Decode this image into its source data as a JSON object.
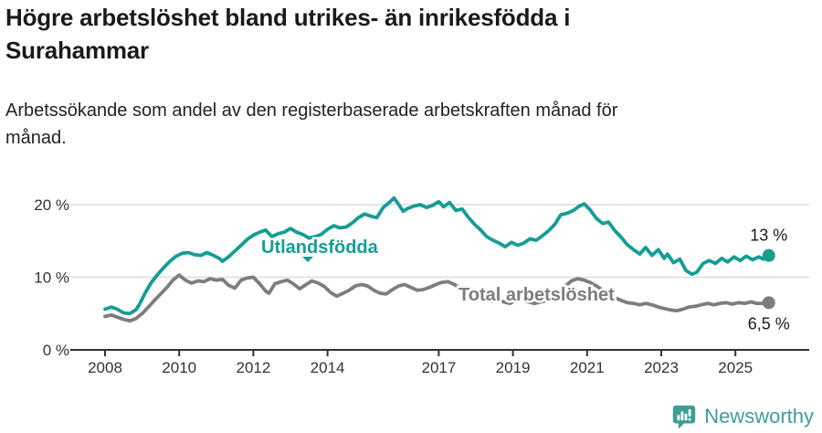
{
  "header": {
    "title_lines": [
      "Högre arbetslöshet bland utrikes- än inrikesfödda i",
      "Surahammar"
    ],
    "subtitle_lines": [
      "Arbetssökande som andel av den registerbaserade arbetskraften månad för",
      "månad."
    ]
  },
  "footer": {
    "brand": "Newsworthy",
    "logo_icon": "speech-bubble-with-bar-chart-and-exclamation",
    "brand_color": "#3f9e94"
  },
  "colors": {
    "foreign_born_line": "#149d94",
    "total_line": "#7d7d7d",
    "gridline": "#dcdcdc",
    "axis": "#333333",
    "tick_text": "#333333",
    "end_label_text": "#1a1a1a",
    "background": "#ffffff"
  },
  "chart_data": {
    "type": "line",
    "title": "Högre arbetslöshet bland utrikes- än inrikesfödda i Surahammar",
    "subtitle": "Arbetssökande som andel av den registerbaserade arbetskraften månad för månad.",
    "xlabel": "",
    "ylabel": "",
    "grid": "horizontal",
    "legend_position": "inline-labels",
    "x_axis": {
      "ticks": [
        2008,
        2010,
        2012,
        2014,
        2017,
        2019,
        2021,
        2023,
        2025
      ],
      "range": [
        2007.9,
        2026.3
      ]
    },
    "y_axis": {
      "ticks": [
        {
          "value": 0,
          "label": "0 %"
        },
        {
          "value": 10,
          "label": "10 %"
        },
        {
          "value": 20,
          "label": "20 %"
        }
      ],
      "range": [
        0,
        22
      ]
    },
    "series": [
      {
        "name": "Total arbetslöshet",
        "color": "#7d7d7d",
        "end_label": "6,5 %",
        "end_value": 6.5,
        "points": [
          [
            2008.0,
            4.6
          ],
          [
            2008.17,
            4.8
          ],
          [
            2008.33,
            4.5
          ],
          [
            2008.5,
            4.2
          ],
          [
            2008.67,
            4.0
          ],
          [
            2008.83,
            4.3
          ],
          [
            2009.0,
            5.0
          ],
          [
            2009.17,
            5.9
          ],
          [
            2009.33,
            6.8
          ],
          [
            2009.5,
            7.7
          ],
          [
            2009.67,
            8.6
          ],
          [
            2009.83,
            9.6
          ],
          [
            2010.0,
            10.3
          ],
          [
            2010.17,
            9.6
          ],
          [
            2010.33,
            9.2
          ],
          [
            2010.5,
            9.5
          ],
          [
            2010.67,
            9.4
          ],
          [
            2010.83,
            9.8
          ],
          [
            2011.0,
            9.6
          ],
          [
            2011.17,
            9.7
          ],
          [
            2011.33,
            8.9
          ],
          [
            2011.5,
            8.5
          ],
          [
            2011.67,
            9.6
          ],
          [
            2011.83,
            9.9
          ],
          [
            2012.0,
            10.0
          ],
          [
            2012.17,
            9.1
          ],
          [
            2012.33,
            8.1
          ],
          [
            2012.42,
            7.8
          ],
          [
            2012.58,
            9.1
          ],
          [
            2012.75,
            9.4
          ],
          [
            2012.92,
            9.6
          ],
          [
            2013.08,
            9.1
          ],
          [
            2013.25,
            8.4
          ],
          [
            2013.42,
            9.0
          ],
          [
            2013.58,
            9.5
          ],
          [
            2013.75,
            9.2
          ],
          [
            2013.92,
            8.7
          ],
          [
            2014.08,
            7.9
          ],
          [
            2014.25,
            7.4
          ],
          [
            2014.42,
            7.8
          ],
          [
            2014.58,
            8.2
          ],
          [
            2014.75,
            8.8
          ],
          [
            2014.92,
            9.0
          ],
          [
            2015.08,
            8.8
          ],
          [
            2015.25,
            8.2
          ],
          [
            2015.42,
            7.8
          ],
          [
            2015.58,
            7.7
          ],
          [
            2015.75,
            8.3
          ],
          [
            2015.92,
            8.8
          ],
          [
            2016.08,
            9.0
          ],
          [
            2016.25,
            8.6
          ],
          [
            2016.42,
            8.2
          ],
          [
            2016.58,
            8.3
          ],
          [
            2016.75,
            8.6
          ],
          [
            2016.92,
            9.0
          ],
          [
            2017.08,
            9.3
          ],
          [
            2017.25,
            9.4
          ],
          [
            2017.42,
            9.0
          ],
          [
            2017.58,
            8.5
          ],
          [
            2017.75,
            8.1
          ],
          [
            2017.92,
            7.6
          ],
          [
            2018.08,
            7.2
          ],
          [
            2018.25,
            6.9
          ],
          [
            2018.42,
            6.7
          ],
          [
            2018.58,
            6.9
          ],
          [
            2018.75,
            6.6
          ],
          [
            2018.92,
            6.4
          ],
          [
            2019.08,
            6.9
          ],
          [
            2019.25,
            6.8
          ],
          [
            2019.42,
            6.6
          ],
          [
            2019.58,
            6.4
          ],
          [
            2019.75,
            6.6
          ],
          [
            2019.92,
            6.8
          ],
          [
            2020.08,
            7.1
          ],
          [
            2020.25,
            7.9
          ],
          [
            2020.42,
            8.8
          ],
          [
            2020.58,
            9.5
          ],
          [
            2020.75,
            9.8
          ],
          [
            2020.92,
            9.6
          ],
          [
            2021.08,
            9.3
          ],
          [
            2021.25,
            8.8
          ],
          [
            2021.42,
            8.2
          ],
          [
            2021.58,
            7.7
          ],
          [
            2021.75,
            7.2
          ],
          [
            2021.92,
            6.8
          ],
          [
            2022.08,
            6.5
          ],
          [
            2022.25,
            6.4
          ],
          [
            2022.42,
            6.2
          ],
          [
            2022.58,
            6.4
          ],
          [
            2022.75,
            6.2
          ],
          [
            2022.92,
            5.9
          ],
          [
            2023.08,
            5.7
          ],
          [
            2023.25,
            5.5
          ],
          [
            2023.42,
            5.4
          ],
          [
            2023.58,
            5.6
          ],
          [
            2023.75,
            5.9
          ],
          [
            2023.92,
            6.0
          ],
          [
            2024.08,
            6.2
          ],
          [
            2024.25,
            6.4
          ],
          [
            2024.42,
            6.2
          ],
          [
            2024.58,
            6.4
          ],
          [
            2024.75,
            6.5
          ],
          [
            2024.92,
            6.3
          ],
          [
            2025.08,
            6.5
          ],
          [
            2025.25,
            6.4
          ],
          [
            2025.42,
            6.6
          ],
          [
            2025.58,
            6.4
          ],
          [
            2025.75,
            6.4
          ],
          [
            2025.9,
            6.5
          ]
        ]
      },
      {
        "name": "Utlandsfödda",
        "color": "#149d94",
        "end_label": "13 %",
        "end_value": 13,
        "points": [
          [
            2008.0,
            5.6
          ],
          [
            2008.17,
            5.9
          ],
          [
            2008.33,
            5.6
          ],
          [
            2008.5,
            5.1
          ],
          [
            2008.67,
            5.0
          ],
          [
            2008.83,
            5.5
          ],
          [
            2008.92,
            6.2
          ],
          [
            2009.08,
            7.8
          ],
          [
            2009.25,
            9.3
          ],
          [
            2009.42,
            10.4
          ],
          [
            2009.58,
            11.3
          ],
          [
            2009.75,
            12.2
          ],
          [
            2009.92,
            12.9
          ],
          [
            2010.08,
            13.3
          ],
          [
            2010.25,
            13.4
          ],
          [
            2010.42,
            13.1
          ],
          [
            2010.58,
            13.0
          ],
          [
            2010.75,
            13.4
          ],
          [
            2010.92,
            13.0
          ],
          [
            2011.08,
            12.6
          ],
          [
            2011.17,
            12.2
          ],
          [
            2011.33,
            12.8
          ],
          [
            2011.5,
            13.6
          ],
          [
            2011.67,
            14.4
          ],
          [
            2011.83,
            15.2
          ],
          [
            2012.0,
            15.8
          ],
          [
            2012.17,
            16.2
          ],
          [
            2012.33,
            16.5
          ],
          [
            2012.5,
            15.6
          ],
          [
            2012.67,
            16.0
          ],
          [
            2012.83,
            16.2
          ],
          [
            2013.0,
            16.7
          ],
          [
            2013.17,
            16.2
          ],
          [
            2013.33,
            15.9
          ],
          [
            2013.5,
            15.4
          ],
          [
            2013.67,
            15.6
          ],
          [
            2013.83,
            15.9
          ],
          [
            2014.0,
            16.6
          ],
          [
            2014.17,
            17.1
          ],
          [
            2014.33,
            16.8
          ],
          [
            2014.5,
            16.9
          ],
          [
            2014.67,
            17.5
          ],
          [
            2014.83,
            18.2
          ],
          [
            2015.0,
            18.7
          ],
          [
            2015.17,
            18.4
          ],
          [
            2015.33,
            18.2
          ],
          [
            2015.5,
            19.6
          ],
          [
            2015.67,
            20.3
          ],
          [
            2015.79,
            20.9
          ],
          [
            2015.92,
            20.0
          ],
          [
            2016.04,
            19.1
          ],
          [
            2016.17,
            19.5
          ],
          [
            2016.33,
            19.8
          ],
          [
            2016.5,
            20.0
          ],
          [
            2016.67,
            19.6
          ],
          [
            2016.83,
            19.9
          ],
          [
            2017.0,
            20.4
          ],
          [
            2017.13,
            19.7
          ],
          [
            2017.29,
            20.3
          ],
          [
            2017.46,
            19.2
          ],
          [
            2017.63,
            19.4
          ],
          [
            2017.79,
            18.3
          ],
          [
            2017.96,
            17.3
          ],
          [
            2018.13,
            16.5
          ],
          [
            2018.29,
            15.6
          ],
          [
            2018.46,
            15.1
          ],
          [
            2018.63,
            14.7
          ],
          [
            2018.79,
            14.2
          ],
          [
            2018.96,
            14.8
          ],
          [
            2019.13,
            14.4
          ],
          [
            2019.29,
            14.7
          ],
          [
            2019.46,
            15.3
          ],
          [
            2019.63,
            15.1
          ],
          [
            2019.79,
            15.7
          ],
          [
            2019.96,
            16.4
          ],
          [
            2020.13,
            17.3
          ],
          [
            2020.29,
            18.6
          ],
          [
            2020.46,
            18.8
          ],
          [
            2020.63,
            19.2
          ],
          [
            2020.79,
            19.8
          ],
          [
            2020.92,
            20.1
          ],
          [
            2021.08,
            19.3
          ],
          [
            2021.25,
            18.1
          ],
          [
            2021.42,
            17.4
          ],
          [
            2021.58,
            17.6
          ],
          [
            2021.75,
            16.4
          ],
          [
            2021.92,
            15.5
          ],
          [
            2022.08,
            14.5
          ],
          [
            2022.25,
            13.8
          ],
          [
            2022.42,
            13.2
          ],
          [
            2022.58,
            14.1
          ],
          [
            2022.75,
            13.0
          ],
          [
            2022.92,
            13.8
          ],
          [
            2023.08,
            12.6
          ],
          [
            2023.17,
            13.2
          ],
          [
            2023.33,
            12.0
          ],
          [
            2023.5,
            12.5
          ],
          [
            2023.67,
            10.9
          ],
          [
            2023.83,
            10.4
          ],
          [
            2023.96,
            10.7
          ],
          [
            2024.13,
            11.9
          ],
          [
            2024.29,
            12.3
          ],
          [
            2024.46,
            11.9
          ],
          [
            2024.63,
            12.6
          ],
          [
            2024.79,
            12.1
          ],
          [
            2024.96,
            12.8
          ],
          [
            2025.13,
            12.3
          ],
          [
            2025.29,
            12.9
          ],
          [
            2025.46,
            12.4
          ],
          [
            2025.63,
            12.8
          ],
          [
            2025.75,
            12.5
          ],
          [
            2025.9,
            13.0
          ]
        ]
      }
    ]
  }
}
